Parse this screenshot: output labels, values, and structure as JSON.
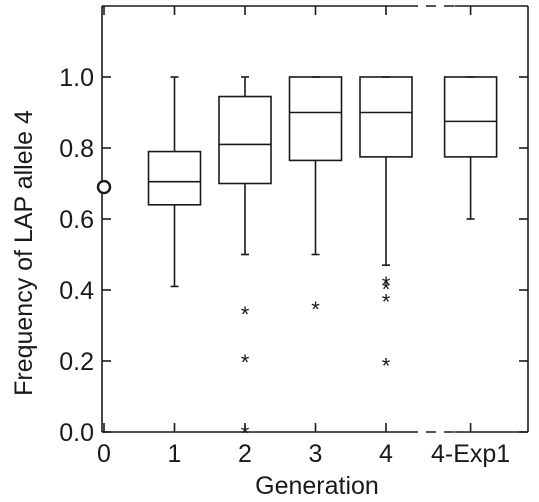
{
  "chart_data": {
    "type": "box",
    "xlabel": "Generation",
    "ylabel": "Frequency of LAP allele 4",
    "ylim": [
      0,
      1.15
    ],
    "yticks": [
      {
        "value": 0.0,
        "label": "0.0"
      },
      {
        "value": 0.2,
        "label": "0.2"
      },
      {
        "value": 0.4,
        "label": "0.4"
      },
      {
        "value": 0.6,
        "label": "0.6"
      },
      {
        "value": 0.8,
        "label": "0.8"
      },
      {
        "value": 1.0,
        "label": "1.0"
      }
    ],
    "xticks": [
      {
        "pos": 0,
        "label": "0"
      },
      {
        "pos": 1,
        "label": "1"
      },
      {
        "pos": 2,
        "label": "2"
      },
      {
        "pos": 3,
        "label": "3"
      },
      {
        "pos": 4,
        "label": "4"
      },
      {
        "pos": 5.2,
        "label": "4-Exp1"
      }
    ],
    "initial_point": {
      "x": 0,
      "y": 0.69
    },
    "boxes": [
      {
        "category": "1",
        "pos": 1,
        "whisker_low": 0.41,
        "q1": 0.64,
        "median": 0.705,
        "q3": 0.79,
        "whisker_high": 1.0,
        "outliers": []
      },
      {
        "category": "2",
        "pos": 2,
        "whisker_low": 0.5,
        "q1": 0.7,
        "median": 0.81,
        "q3": 0.945,
        "whisker_high": 1.0,
        "outliers": [
          0.335,
          0.2,
          0.0
        ]
      },
      {
        "category": "3",
        "pos": 3,
        "whisker_low": 0.5,
        "q1": 0.765,
        "median": 0.9,
        "q3": 1.0,
        "whisker_high": 1.0,
        "outliers": [
          0.35
        ]
      },
      {
        "category": "4",
        "pos": 4,
        "whisker_low": 0.47,
        "q1": 0.775,
        "median": 0.9,
        "q3": 1.0,
        "whisker_high": 1.0,
        "outliers": [
          0.42,
          0.405,
          0.37,
          0.19
        ]
      },
      {
        "category": "4-Exp1",
        "pos": 5.2,
        "whisker_low": 0.6,
        "q1": 0.775,
        "median": 0.875,
        "q3": 1.0,
        "whisker_high": 1.0,
        "outliers": []
      }
    ],
    "axis_break": {
      "from": 4,
      "to": 5
    },
    "grid": false,
    "legend": "none"
  }
}
